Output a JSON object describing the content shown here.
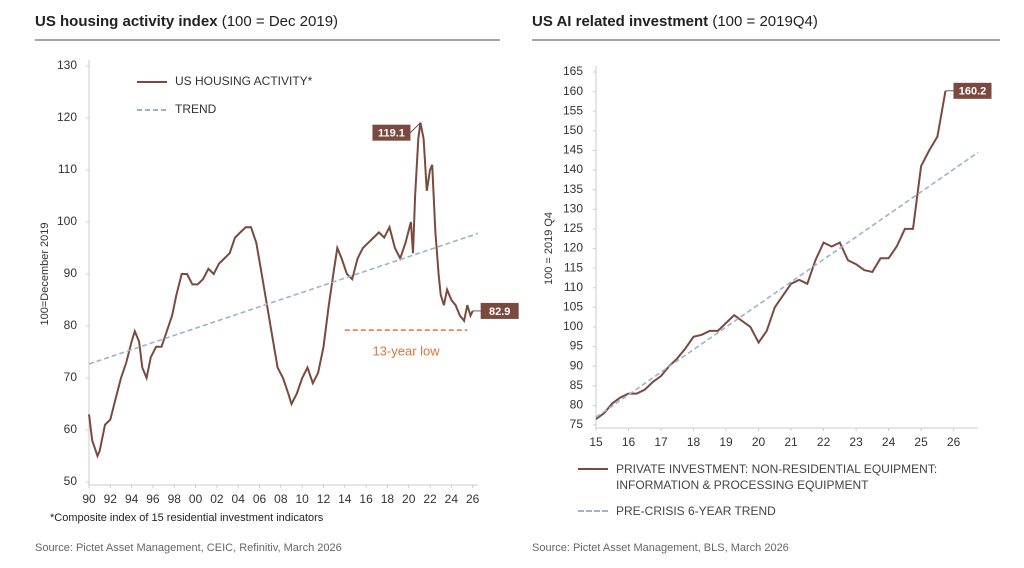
{
  "chart_data": [
    {
      "type": "line",
      "title": "US housing activity index",
      "subtitle": "(100 = Dec 2019)",
      "y_label": "100=December 2019",
      "legend": "upper left",
      "xlim": [
        1990,
        2026.5
      ],
      "ylim": [
        50,
        130
      ],
      "yticks": [
        50,
        60,
        70,
        80,
        90,
        100,
        110,
        120,
        130
      ],
      "xticks": [
        {
          "value": 1990,
          "label": "90"
        },
        {
          "value": 1992,
          "label": "92"
        },
        {
          "value": 1994,
          "label": "94"
        },
        {
          "value": 1996,
          "label": "96"
        },
        {
          "value": 1998,
          "label": "98"
        },
        {
          "value": 2000,
          "label": "00"
        },
        {
          "value": 2002,
          "label": "02"
        },
        {
          "value": 2004,
          "label": "04"
        },
        {
          "value": 2006,
          "label": "06"
        },
        {
          "value": 2008,
          "label": "08"
        },
        {
          "value": 2010,
          "label": "10"
        },
        {
          "value": 2012,
          "label": "12"
        },
        {
          "value": 2014,
          "label": "14"
        },
        {
          "value": 2016,
          "label": "16"
        },
        {
          "value": 2018,
          "label": "18"
        },
        {
          "value": 2020,
          "label": "20"
        },
        {
          "value": 2022,
          "label": "22"
        },
        {
          "value": 2024,
          "label": "24"
        },
        {
          "value": 2026,
          "label": "26"
        }
      ],
      "series": [
        {
          "name": "US HOUSING ACTIVITY*",
          "color": "#7b4a3f",
          "style": "solid",
          "x": [
            1990,
            1990.3,
            1990.8,
            1991,
            1991.5,
            1992,
            1992.5,
            1993,
            1993.5,
            1994,
            1994.3,
            1994.7,
            1995,
            1995.4,
            1995.8,
            1996.3,
            1996.8,
            1997.3,
            1997.8,
            1998.2,
            1998.7,
            1999.2,
            1999.7,
            2000.2,
            2000.7,
            2001.2,
            2001.7,
            2002.2,
            2002.7,
            2003.2,
            2003.7,
            2004.2,
            2004.7,
            2005.2,
            2005.7,
            2006.2,
            2006.7,
            2007.2,
            2007.7,
            2008.2,
            2008.7,
            2009,
            2009.5,
            2010,
            2010.5,
            2011,
            2011.5,
            2012,
            2012.5,
            2013,
            2013.3,
            2013.7,
            2014.2,
            2014.7,
            2015.2,
            2015.7,
            2016.2,
            2016.7,
            2017.2,
            2017.7,
            2018.2,
            2018.7,
            2019.2,
            2019.7,
            2020.2,
            2020.4,
            2020.6,
            2020.9,
            2021.1,
            2021.4,
            2021.7,
            2022,
            2022.2,
            2022.5,
            2022.8,
            2023,
            2023.3,
            2023.6,
            2024,
            2024.4,
            2024.8,
            2025.2,
            2025.5,
            2025.8,
            2026
          ],
          "values": [
            63,
            58,
            55,
            56,
            61,
            62,
            66,
            70,
            73,
            77,
            79,
            77,
            72,
            70,
            74,
            76,
            76,
            79,
            82,
            86,
            90,
            90,
            88,
            88,
            89,
            91,
            90,
            92,
            93,
            94,
            97,
            98,
            99,
            99,
            96,
            90,
            84,
            78,
            72,
            70,
            67,
            65,
            67,
            70,
            72,
            69,
            71,
            76,
            84,
            91,
            95,
            93,
            90,
            89,
            93,
            95,
            96,
            97,
            98,
            97,
            99,
            95,
            93,
            96,
            100,
            94,
            105,
            116,
            119.1,
            116,
            106,
            110,
            111,
            98,
            90,
            86,
            84,
            87,
            85,
            84,
            82,
            81,
            84,
            82,
            82.9
          ]
        },
        {
          "name": "TREND",
          "color": "#9fb1cc",
          "style": "dashed",
          "x": [
            1990,
            2026.5
          ],
          "values": [
            72.7,
            97.8
          ]
        }
      ],
      "annotations": [
        {
          "text": "13-year low",
          "x": [
            2014,
            2025.5
          ],
          "y": 79.2,
          "color": "#d9773a"
        }
      ],
      "note": "*Composite index of 15 residential investment indicators",
      "source": "Source: Pictet Asset Management, CEIC, Refinitiv, March 2026"
    },
    {
      "type": "line",
      "title": "US AI related investment",
      "subtitle": "(100 = 2019Q4)",
      "y_label": "100 = 2019 Q4",
      "legend": "below",
      "xlim": [
        2015,
        2026.75
      ],
      "ylim": [
        75,
        165
      ],
      "yticks": [
        75,
        80,
        85,
        90,
        95,
        100,
        105,
        110,
        115,
        120,
        125,
        130,
        135,
        140,
        145,
        150,
        155,
        160,
        165
      ],
      "xticks": [
        {
          "value": 2015,
          "label": "15"
        },
        {
          "value": 2016,
          "label": "16"
        },
        {
          "value": 2017,
          "label": "17"
        },
        {
          "value": 2018,
          "label": "18"
        },
        {
          "value": 2019,
          "label": "19"
        },
        {
          "value": 2020,
          "label": "20"
        },
        {
          "value": 2021,
          "label": "21"
        },
        {
          "value": 2022,
          "label": "22"
        },
        {
          "value": 2023,
          "label": "23"
        },
        {
          "value": 2024,
          "label": "24"
        },
        {
          "value": 2025,
          "label": "25"
        },
        {
          "value": 2026,
          "label": "26"
        }
      ],
      "series": [
        {
          "name": "PRIVATE INVESTMENT: NON-RESIDENTIAL EQUIPMENT: INFORMATION & PROCESSING EQUIPMENT",
          "color": "#7b4a3f",
          "style": "solid",
          "x": [
            2015,
            2015.25,
            2015.5,
            2015.75,
            2016,
            2016.25,
            2016.5,
            2016.75,
            2017,
            2017.25,
            2017.5,
            2017.75,
            2018,
            2018.25,
            2018.5,
            2018.75,
            2019,
            2019.25,
            2019.5,
            2019.75,
            2020,
            2020.25,
            2020.5,
            2020.75,
            2021,
            2021.25,
            2021.5,
            2021.75,
            2022,
            2022.25,
            2022.5,
            2022.75,
            2023,
            2023.25,
            2023.5,
            2023.75,
            2024,
            2024.25,
            2024.5,
            2024.75,
            2025,
            2025.25,
            2025.5,
            2025.75
          ],
          "values": [
            76.5,
            78,
            80.5,
            82,
            83,
            83,
            84,
            86,
            87.5,
            90,
            92,
            94.5,
            97.5,
            98,
            99,
            99,
            101,
            103,
            101.5,
            100,
            96,
            99,
            105,
            108,
            111,
            112,
            111,
            117,
            121.5,
            120.5,
            121.5,
            117,
            116,
            114.5,
            114,
            117.5,
            117.5,
            120.5,
            125,
            125,
            141,
            145,
            148.5,
            160.2
          ]
        },
        {
          "name": "PRE-CRISIS 6-YEAR TREND",
          "color": "#9fb1cc",
          "style": "dashed",
          "x": [
            2015,
            2026.75
          ],
          "values": [
            77,
            144.5
          ]
        }
      ],
      "annotations": [],
      "source": "Source: Pictet Asset Management, BLS, March 2026"
    }
  ]
}
